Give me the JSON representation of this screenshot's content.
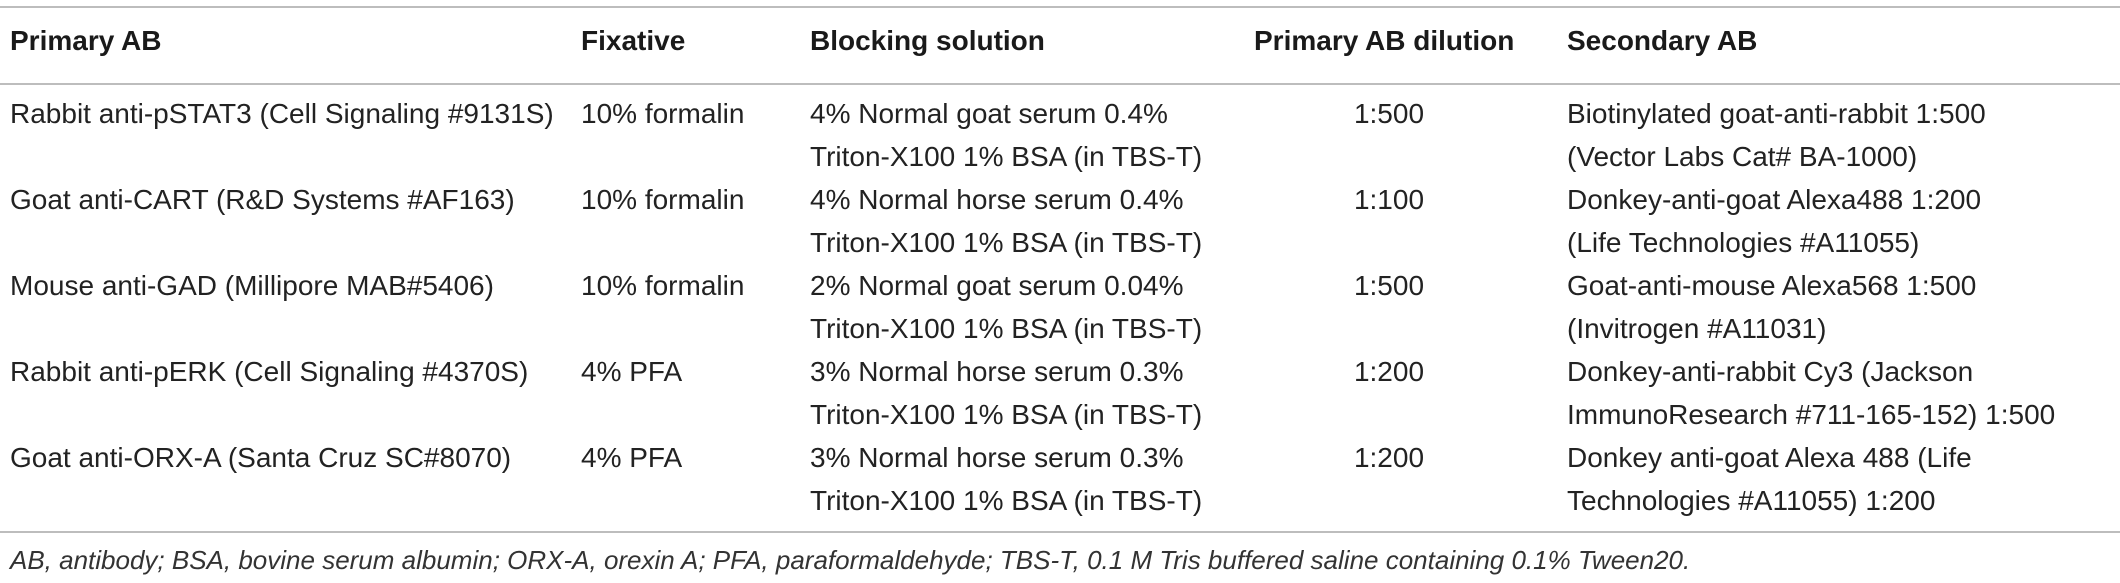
{
  "headers": {
    "primary_ab": "Primary AB",
    "fixative": "Fixative",
    "blocking": "Blocking solution",
    "dilution": "Primary AB dilution",
    "secondary": "Secondary AB"
  },
  "rows": [
    {
      "primary_ab": "Rabbit anti-pSTAT3 (Cell Signaling #9131S)",
      "fixative": "10% formalin",
      "blocking_line1": "4% Normal goat serum 0.4%",
      "blocking_line2": "Triton-X100 1% BSA (in TBS-T)",
      "dilution": "1:500",
      "secondary_line1": "Biotinylated goat-anti-rabbit 1:500",
      "secondary_line2": "(Vector Labs Cat# BA-1000)"
    },
    {
      "primary_ab": "Goat anti-CART (R&D Systems #AF163)",
      "fixative": "10% formalin",
      "blocking_line1": "4% Normal horse serum 0.4%",
      "blocking_line2": "Triton-X100 1% BSA (in TBS-T)",
      "dilution": "1:100",
      "secondary_line1": "Donkey-anti-goat Alexa488 1:200",
      "secondary_line2": "(Life Technologies #A11055)"
    },
    {
      "primary_ab": "Mouse anti-GAD (Millipore MAB#5406)",
      "fixative": "10% formalin",
      "blocking_line1": "2% Normal goat serum 0.04%",
      "blocking_line2": "Triton-X100 1% BSA (in TBS-T)",
      "dilution": "1:500",
      "secondary_line1": "Goat-anti-mouse Alexa568 1:500",
      "secondary_line2": "(Invitrogen #A11031)"
    },
    {
      "primary_ab": "Rabbit anti-pERK (Cell Signaling #4370S)",
      "fixative": "4% PFA",
      "blocking_line1": "3% Normal horse serum 0.3%",
      "blocking_line2": "Triton-X100 1% BSA (in TBS-T)",
      "dilution": "1:200",
      "secondary_line1": "Donkey-anti-rabbit Cy3 (Jackson",
      "secondary_line2": "ImmunoResearch #711-165-152) 1:500"
    },
    {
      "primary_ab": "Goat anti-ORX-A (Santa Cruz SC#8070)",
      "fixative": "4% PFA",
      "blocking_line1": "3% Normal horse serum 0.3%",
      "blocking_line2": "Triton-X100 1% BSA (in TBS-T)",
      "dilution": "1:200",
      "secondary_line1": "Donkey anti-goat Alexa 488 (Life",
      "secondary_line2": "Technologies #A11055) 1:200"
    }
  ],
  "footnote": "AB, antibody; BSA, bovine serum albumin; ORX-A, orexin A; PFA, paraformaldehyde; TBS-T, 0.1 M Tris buffered saline containing 0.1% Tween20.",
  "colors": {
    "text": "#222222",
    "rule": "#bdbdbd",
    "background": "#ffffff"
  }
}
